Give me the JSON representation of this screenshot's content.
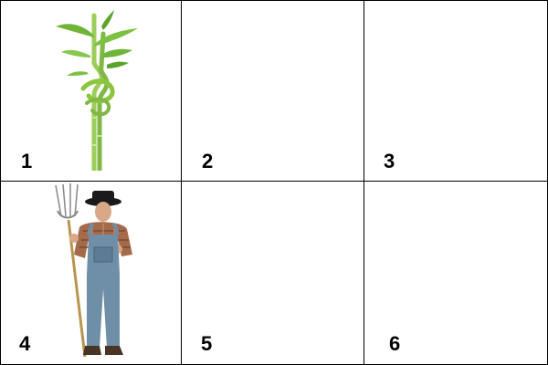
{
  "puzzle": {
    "cells": [
      {
        "number": "1",
        "image": "bamboo-plant"
      },
      {
        "number": "2",
        "image": ""
      },
      {
        "number": "3",
        "image": ""
      },
      {
        "number": "4",
        "image": "farmer-with-pitchfork"
      },
      {
        "number": "5",
        "image": ""
      },
      {
        "number": "6",
        "image": ""
      }
    ]
  },
  "colors": {
    "border": "#000000",
    "bamboo_green": "#8cc63f",
    "overalls_blue": "#6f8fa8",
    "shirt_plaid": "#a46a4a"
  }
}
